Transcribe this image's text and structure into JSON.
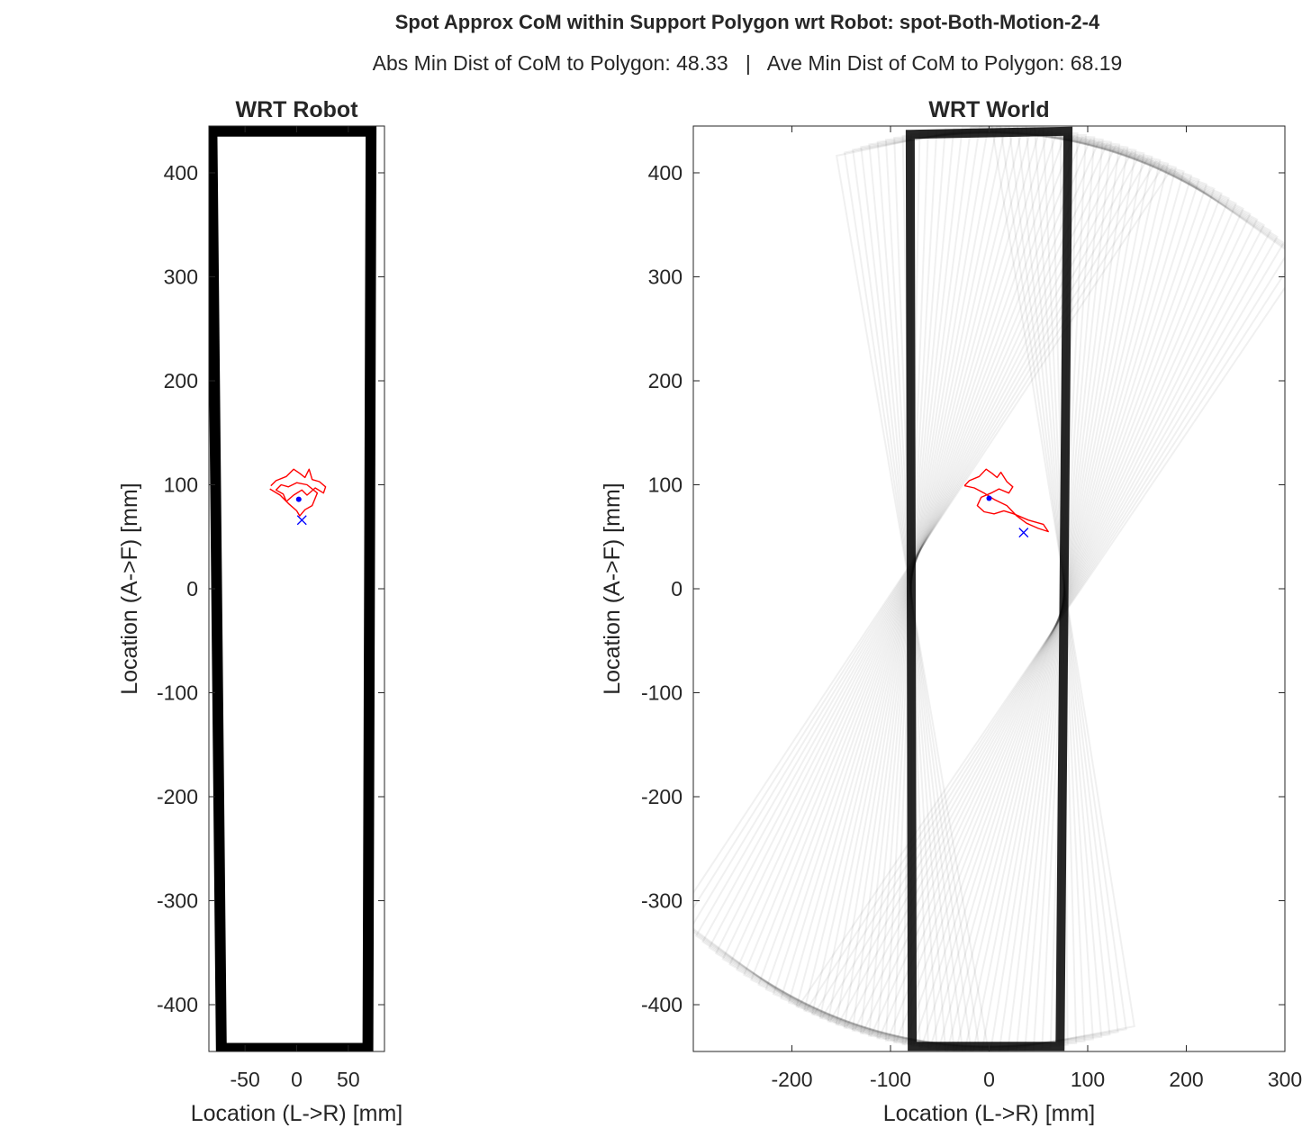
{
  "figure": {
    "title": "Spot Approx CoM within Support Polygon wrt Robot: spot-Both-Motion-2-4",
    "subtitle": "Abs Min Dist of CoM to Polygon: 48.33   |   Ave Min Dist of CoM to Polygon: 68.19"
  },
  "chart_data": [
    {
      "type": "line",
      "title": "WRT Robot",
      "xlabel": "Location (L->R) [mm]",
      "ylabel": "Location (A->F) [mm]",
      "xlim": [
        -85,
        85
      ],
      "ylim": [
        -445,
        445
      ],
      "xticks": [
        -50,
        0,
        50
      ],
      "yticks": [
        -400,
        -300,
        -200,
        -100,
        0,
        100,
        200,
        300,
        400
      ],
      "grid": false,
      "support_polygon": {
        "color": "#000000",
        "vertices": [
          [
            -82,
            440
          ],
          [
            72,
            440
          ],
          [
            69,
            -442
          ],
          [
            -73,
            -442
          ]
        ]
      },
      "com_trace": {
        "color": "#ff0000",
        "points": [
          [
            -25,
            99
          ],
          [
            -20,
            104
          ],
          [
            -10,
            108
          ],
          [
            -3,
            115
          ],
          [
            3,
            111
          ],
          [
            8,
            107
          ],
          [
            12,
            115
          ],
          [
            15,
            105
          ],
          [
            22,
            103
          ],
          [
            28,
            98
          ],
          [
            26,
            92
          ],
          [
            18,
            97
          ],
          [
            10,
            90
          ],
          [
            5,
            95
          ],
          [
            -3,
            90
          ],
          [
            -10,
            84
          ],
          [
            -13,
            91
          ],
          [
            -20,
            95
          ],
          [
            -15,
            100
          ],
          [
            -8,
            98
          ],
          [
            0,
            102
          ],
          [
            10,
            100
          ],
          [
            20,
            92
          ],
          [
            15,
            80
          ],
          [
            8,
            76
          ],
          [
            3,
            70
          ],
          [
            0,
            75
          ],
          [
            -8,
            82
          ],
          [
            -16,
            90
          ],
          [
            -26,
            96
          ]
        ]
      },
      "com_mean": {
        "x": 2,
        "y": 86,
        "color": "#0000ff"
      },
      "com_final": {
        "x": 5,
        "y": 66,
        "color": "#0000ff"
      }
    },
    {
      "type": "line",
      "title": "WRT World",
      "xlabel": "Location (L->R) [mm]",
      "ylabel": "Location (A->F) [mm]",
      "xlim": [
        -300,
        300
      ],
      "ylim": [
        -445,
        445
      ],
      "xticks": [
        -200,
        -100,
        0,
        100,
        200,
        300
      ],
      "yticks": [
        -400,
        -300,
        -200,
        -100,
        0,
        100,
        200,
        300,
        400
      ],
      "grid": false,
      "support_polygon": {
        "color": "#000000",
        "vertices": [
          [
            -80,
            437
          ],
          [
            80,
            440
          ],
          [
            72,
            -440
          ],
          [
            -78,
            -440
          ]
        ]
      },
      "rotation_sweep_deg": [
        -10,
        35
      ],
      "com_trace": {
        "color": "#ff0000",
        "points": [
          [
            -25,
            99
          ],
          [
            -20,
            104
          ],
          [
            -10,
            108
          ],
          [
            -3,
            115
          ],
          [
            3,
            111
          ],
          [
            8,
            107
          ],
          [
            12,
            112
          ],
          [
            18,
            103
          ],
          [
            24,
            98
          ],
          [
            20,
            92
          ],
          [
            10,
            96
          ],
          [
            2,
            92
          ],
          [
            -8,
            88
          ],
          [
            -12,
            80
          ],
          [
            -5,
            74
          ],
          [
            5,
            72
          ],
          [
            15,
            75
          ],
          [
            25,
            72
          ],
          [
            40,
            66
          ],
          [
            55,
            62
          ],
          [
            60,
            55
          ],
          [
            50,
            58
          ],
          [
            38,
            63
          ],
          [
            28,
            70
          ],
          [
            18,
            80
          ],
          [
            5,
            86
          ],
          [
            -5,
            92
          ],
          [
            -15,
            97
          ],
          [
            -25,
            99
          ]
        ]
      },
      "com_mean": {
        "x": 0,
        "y": 87,
        "color": "#0000ff"
      },
      "com_final": {
        "x": 35,
        "y": 54,
        "color": "#0000ff"
      }
    }
  ]
}
